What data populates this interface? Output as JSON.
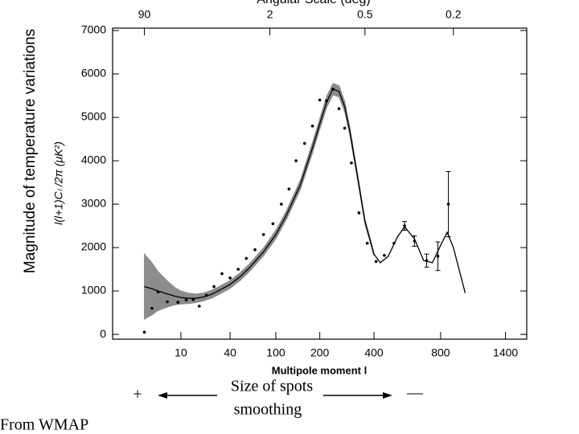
{
  "chart_data": {
    "type": "scatter",
    "title": "Angular Scale (deg)",
    "y_label_outer": "Magnitude of temperature variations",
    "y_label": "l(l+1)Cₗ /2π (μK²)",
    "x_label": "Multipole moment l",
    "xscale": "power",
    "xscale_exponent": 0.3,
    "xlim": [
      0.15,
      1650
    ],
    "xticks": [
      10,
      40,
      100,
      200,
      400,
      800,
      1400
    ],
    "x2ticks": [
      90,
      2,
      0.5,
      0.2
    ],
    "ylim": [
      -110,
      7055
    ],
    "yticks": [
      0,
      1000,
      2000,
      3000,
      4000,
      5000,
      6000,
      7000
    ],
    "points": {
      "color": "#000000",
      "x": [
        2,
        3,
        4,
        6,
        9,
        12,
        15,
        18,
        22,
        27,
        33,
        40,
        48,
        57,
        68,
        80,
        95,
        110,
        125,
        140,
        160,
        180,
        200,
        220,
        240,
        260,
        280,
        305,
        335,
        370,
        410,
        450,
        500,
        560,
        620,
        700,
        780,
        860
      ],
      "values": [
        50,
        600,
        980,
        750,
        740,
        790,
        800,
        650,
        900,
        1100,
        1400,
        1300,
        1500,
        1750,
        1950,
        2300,
        2550,
        3000,
        3350,
        4000,
        4400,
        4800,
        5400,
        5380,
        5650,
        5200,
        4750,
        3950,
        2800,
        2100,
        1680,
        1820,
        2100,
        2500,
        2150,
        1700,
        1800,
        3000
      ],
      "errors": [
        null,
        null,
        null,
        null,
        null,
        null,
        null,
        null,
        null,
        null,
        null,
        null,
        null,
        null,
        null,
        null,
        null,
        null,
        null,
        null,
        null,
        null,
        null,
        null,
        null,
        null,
        null,
        null,
        null,
        null,
        null,
        null,
        null,
        100,
        120,
        150,
        330,
        750
      ]
    },
    "model": {
      "color": "#000000",
      "band_color": "#8c8c8c",
      "x": [
        2,
        3,
        4,
        6,
        8,
        10,
        13,
        16,
        20,
        25,
        30,
        40,
        50,
        60,
        80,
        100,
        120,
        150,
        180,
        200,
        220,
        240,
        260,
        280,
        300,
        330,
        360,
        400,
        430,
        470,
        520,
        560,
        620,
        680,
        740,
        800,
        850,
        900,
        1000
      ],
      "values": [
        1100,
        1050,
        1000,
        930,
        880,
        850,
        830,
        830,
        860,
        920,
        1000,
        1150,
        1330,
        1520,
        1900,
        2300,
        2750,
        3450,
        4300,
        4850,
        5350,
        5650,
        5600,
        5250,
        4650,
        3600,
        2600,
        1850,
        1650,
        1800,
        2250,
        2480,
        2200,
        1700,
        1650,
        2050,
        2350,
        2000,
        950
      ],
      "band_upper": [
        1850,
        1650,
        1450,
        1230,
        1080,
        1000,
        950,
        930,
        950,
        1010,
        1090,
        1240,
        1420,
        1610,
        1990,
        2400,
        2850,
        3560,
        4420,
        4970,
        5480,
        5780,
        5730,
        5370,
        4750,
        3680,
        2660,
        1890,
        null,
        null,
        null,
        null,
        null,
        null,
        null,
        null,
        null,
        null,
        null
      ],
      "band_lower": [
        350,
        450,
        550,
        630,
        680,
        700,
        710,
        730,
        770,
        830,
        910,
        1060,
        1240,
        1430,
        1810,
        2200,
        2650,
        3340,
        4180,
        4730,
        5220,
        5520,
        5470,
        5130,
        4550,
        3520,
        2540,
        1810,
        null,
        null,
        null,
        null,
        null,
        null,
        null,
        null,
        null,
        null,
        null
      ]
    },
    "annotations": {
      "plus": "+",
      "minus": "—",
      "spots": "Size of spots",
      "smoothing": "smoothing",
      "source": "From WMAP"
    }
  }
}
